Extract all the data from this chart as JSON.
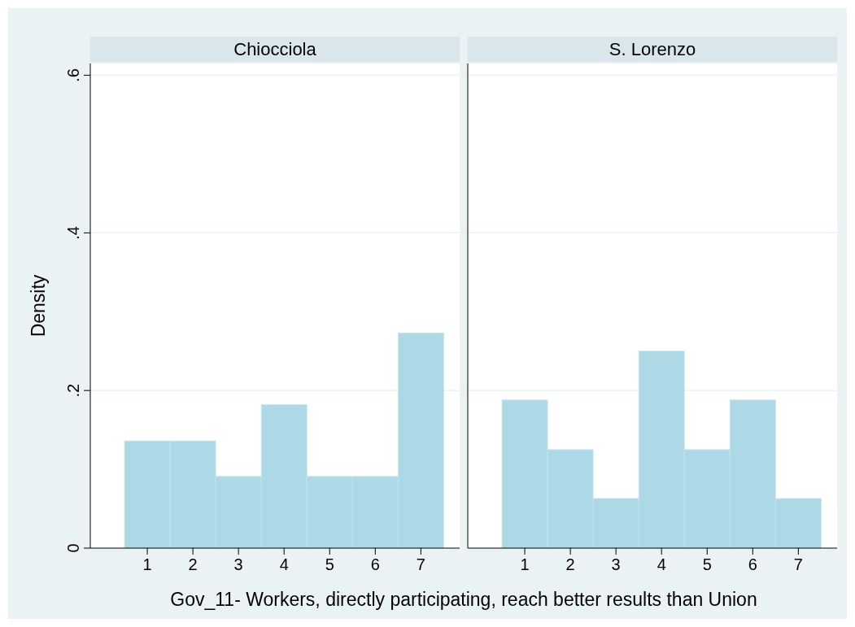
{
  "chart_data": [
    {
      "type": "histogram",
      "title": "Chiocciola",
      "xlabel": "Gov_11- Workers, directly participating, reach better results than Union",
      "ylabel": "Density",
      "bins": [
        0.5,
        1.5,
        2.5,
        3.5,
        4.5,
        5.5,
        6.5,
        7.5
      ],
      "values": [
        0.136,
        0.136,
        0.091,
        0.182,
        0.091,
        0.091,
        0.273
      ],
      "color": "#add8e6",
      "xlim": [
        -0.25,
        7.85
      ],
      "xticks": [
        1,
        2,
        3,
        4,
        5,
        6,
        7
      ],
      "ylim": [
        0,
        0.615
      ],
      "yticks": [
        {
          "value": 0,
          "label": "0"
        },
        {
          "value": 0.2,
          "label": ".2"
        },
        {
          "value": 0.4,
          "label": ".4"
        },
        {
          "value": 0.6,
          "label": ".6"
        }
      ],
      "grid": "y"
    },
    {
      "type": "histogram",
      "title": "S. Lorenzo",
      "bins": [
        0.5,
        1.5,
        2.5,
        3.5,
        4.5,
        5.5,
        6.5,
        7.5
      ],
      "values": [
        0.188,
        0.125,
        0.063,
        0.25,
        0.125,
        0.188,
        0.063
      ],
      "color": "#add8e6",
      "xlim": [
        -0.25,
        7.85
      ],
      "xticks": [
        1,
        2,
        3,
        4,
        5,
        6,
        7
      ],
      "ylim": [
        0,
        0.615
      ],
      "yticks": [
        {
          "value": 0,
          "label": null
        },
        {
          "value": 0.2,
          "label": null
        },
        {
          "value": 0.4,
          "label": null
        },
        {
          "value": 0.6,
          "label": null
        }
      ],
      "grid": "y",
      "tick_labels": "x"
    }
  ]
}
